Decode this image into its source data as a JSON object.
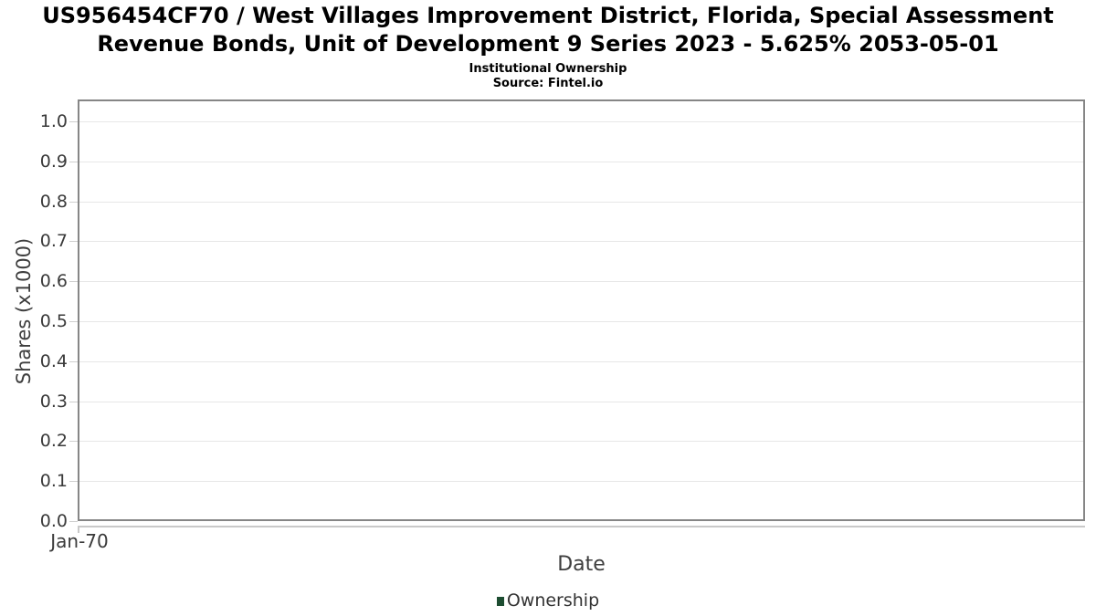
{
  "chart_data": {
    "type": "line",
    "title": "US956454CF70 / West Villages Improvement District, Florida, Special Assessment Revenue Bonds, Unit of Development 9 Series 2023 - 5.625% 2053-05-01",
    "title_lines": [
      "US956454CF70 / West Villages Improvement District, Florida, Special Assessment",
      "Revenue Bonds, Unit of Development 9 Series 2023 - 5.625% 2053-05-01"
    ],
    "subtitle": "Institutional Ownership",
    "source": "Source: Fintel.io",
    "xlabel": "Date",
    "ylabel": "Shares (x1000)",
    "x_ticks": [
      "Jan-70"
    ],
    "y_ticks": [
      "1.0",
      "0.9",
      "0.8",
      "0.7",
      "0.6",
      "0.5",
      "0.4",
      "0.3",
      "0.2",
      "0.1",
      "0.0"
    ],
    "ylim": [
      0.0,
      1.05
    ],
    "xlim_note": "no data plotted; single x tick at left origin",
    "grid": true,
    "legend_position": "bottom-center",
    "legend": [
      {
        "label": "Ownership",
        "color": "#1d4d31"
      }
    ],
    "series": [
      {
        "name": "Ownership",
        "x": [],
        "y": []
      }
    ]
  },
  "colors": {
    "background": "#ffffff",
    "plot_border": "#868686",
    "gridline": "#e7e7e7",
    "tick_mark": "#cfcfcf",
    "axis_line": "#c9c9c9",
    "title_text": "#000000",
    "tick_text": "#3a3a3a",
    "axis_label_text": "#3e3e3e",
    "legend_text": "#333333",
    "legend_swatch": "#1d4d31"
  }
}
